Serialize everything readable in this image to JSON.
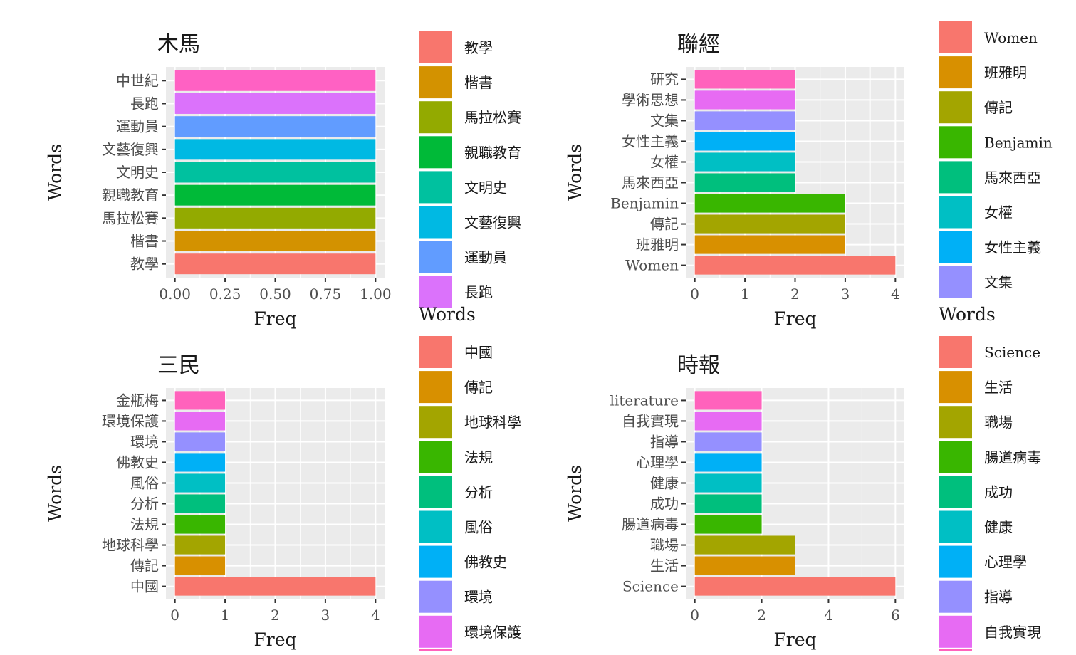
{
  "chart_data": [
    {
      "type": "bar",
      "orientation": "horizontal",
      "title": "木馬",
      "xlabel": "Freq",
      "ylabel": "Words",
      "xlim": [
        0,
        1
      ],
      "x_ticks": [
        "0.00",
        "0.25",
        "0.50",
        "0.75",
        "1.00"
      ],
      "x_tick_values": [
        0,
        0.25,
        0.5,
        0.75,
        1
      ],
      "categories": [
        "教學",
        "楷書",
        "馬拉松賽",
        "親職教育",
        "文明史",
        "文藝復興",
        "運動員",
        "長跑",
        "中世紀"
      ],
      "values": [
        1,
        1,
        1,
        1,
        1,
        1,
        1,
        1,
        1
      ],
      "colors": [
        "#F8766D",
        "#D39200",
        "#93AA00",
        "#00BA38",
        "#00C19F",
        "#00B9E3",
        "#619CFF",
        "#DB72FB",
        "#FF61C3"
      ],
      "legend": {
        "title": "Words",
        "items": [
          "教學",
          "楷書",
          "馬拉松賽",
          "親職教育",
          "文明史",
          "文藝復興",
          "運動員",
          "長跑"
        ],
        "colors": [
          "#F8766D",
          "#D39200",
          "#93AA00",
          "#00BA38",
          "#00C19F",
          "#00B9E3",
          "#619CFF",
          "#DB72FB"
        ]
      },
      "grid": true
    },
    {
      "type": "bar",
      "orientation": "horizontal",
      "title": "聯經",
      "xlabel": "Freq",
      "ylabel": "Words",
      "xlim": [
        0,
        4
      ],
      "x_ticks": [
        "0",
        "1",
        "2",
        "3",
        "4"
      ],
      "x_tick_values": [
        0,
        1,
        2,
        3,
        4
      ],
      "categories": [
        "Women",
        "班雅明",
        "傳記",
        "Benjamin",
        "馬來西亞",
        "女權",
        "女性主義",
        "文集",
        "學術思想",
        "研究"
      ],
      "values": [
        4,
        3,
        3,
        3,
        2,
        2,
        2,
        2,
        2,
        2
      ],
      "colors": [
        "#F8766D",
        "#D89000",
        "#A3A500",
        "#39B600",
        "#00BF7D",
        "#00BFC4",
        "#00B0F6",
        "#9590FF",
        "#E76BF3",
        "#FF62BC"
      ],
      "legend": {
        "title": "Words",
        "items": [
          "Women",
          "班雅明",
          "傳記",
          "Benjamin",
          "馬來西亞",
          "女權",
          "女性主義",
          "文集"
        ],
        "colors": [
          "#F8766D",
          "#D89000",
          "#A3A500",
          "#39B600",
          "#00BF7D",
          "#00BFC4",
          "#00B0F6",
          "#9590FF"
        ]
      },
      "grid": true
    },
    {
      "type": "bar",
      "orientation": "horizontal",
      "title": "三民",
      "xlabel": "Freq",
      "ylabel": "Words",
      "xlim": [
        0,
        4
      ],
      "x_ticks": [
        "0",
        "1",
        "2",
        "3",
        "4"
      ],
      "x_tick_values": [
        0,
        1,
        2,
        3,
        4
      ],
      "categories": [
        "中國",
        "傳記",
        "地球科學",
        "法規",
        "分析",
        "風俗",
        "佛教史",
        "環境",
        "環境保護",
        "金瓶梅"
      ],
      "values": [
        4,
        1,
        1,
        1,
        1,
        1,
        1,
        1,
        1,
        1
      ],
      "colors": [
        "#F8766D",
        "#D89000",
        "#A3A500",
        "#39B600",
        "#00BF7D",
        "#00BFC4",
        "#00B0F6",
        "#9590FF",
        "#E76BF3",
        "#FF62BC"
      ],
      "legend": {
        "title": "",
        "items": [
          "中國",
          "傳記",
          "地球科學",
          "法規",
          "分析",
          "風俗",
          "佛教史",
          "環境",
          "環境保護"
        ],
        "colors": [
          "#F8766D",
          "#D89000",
          "#A3A500",
          "#39B600",
          "#00BF7D",
          "#00BFC4",
          "#00B0F6",
          "#9590FF",
          "#E76BF3"
        ]
      },
      "grid": true
    },
    {
      "type": "bar",
      "orientation": "horizontal",
      "title": "時報",
      "xlabel": "Freq",
      "ylabel": "Words",
      "xlim": [
        0,
        6
      ],
      "x_ticks": [
        "0",
        "2",
        "4",
        "6"
      ],
      "x_tick_values": [
        0,
        2,
        4,
        6
      ],
      "categories": [
        "Science",
        "生活",
        "職場",
        "腸道病毒",
        "成功",
        "健康",
        "心理學",
        "指導",
        "自我實現",
        "literature"
      ],
      "values": [
        6,
        3,
        3,
        2,
        2,
        2,
        2,
        2,
        2,
        2
      ],
      "colors": [
        "#F8766D",
        "#D89000",
        "#A3A500",
        "#39B600",
        "#00BF7D",
        "#00BFC4",
        "#00B0F6",
        "#9590FF",
        "#E76BF3",
        "#FF62BC"
      ],
      "legend": {
        "title": "",
        "items": [
          "Science",
          "生活",
          "職場",
          "腸道病毒",
          "成功",
          "健康",
          "心理學",
          "指導",
          "自我實現"
        ],
        "colors": [
          "#F8766D",
          "#D89000",
          "#A3A500",
          "#39B600",
          "#00BF7D",
          "#00BFC4",
          "#00B0F6",
          "#9590FF",
          "#E76BF3"
        ]
      },
      "grid": true
    }
  ]
}
